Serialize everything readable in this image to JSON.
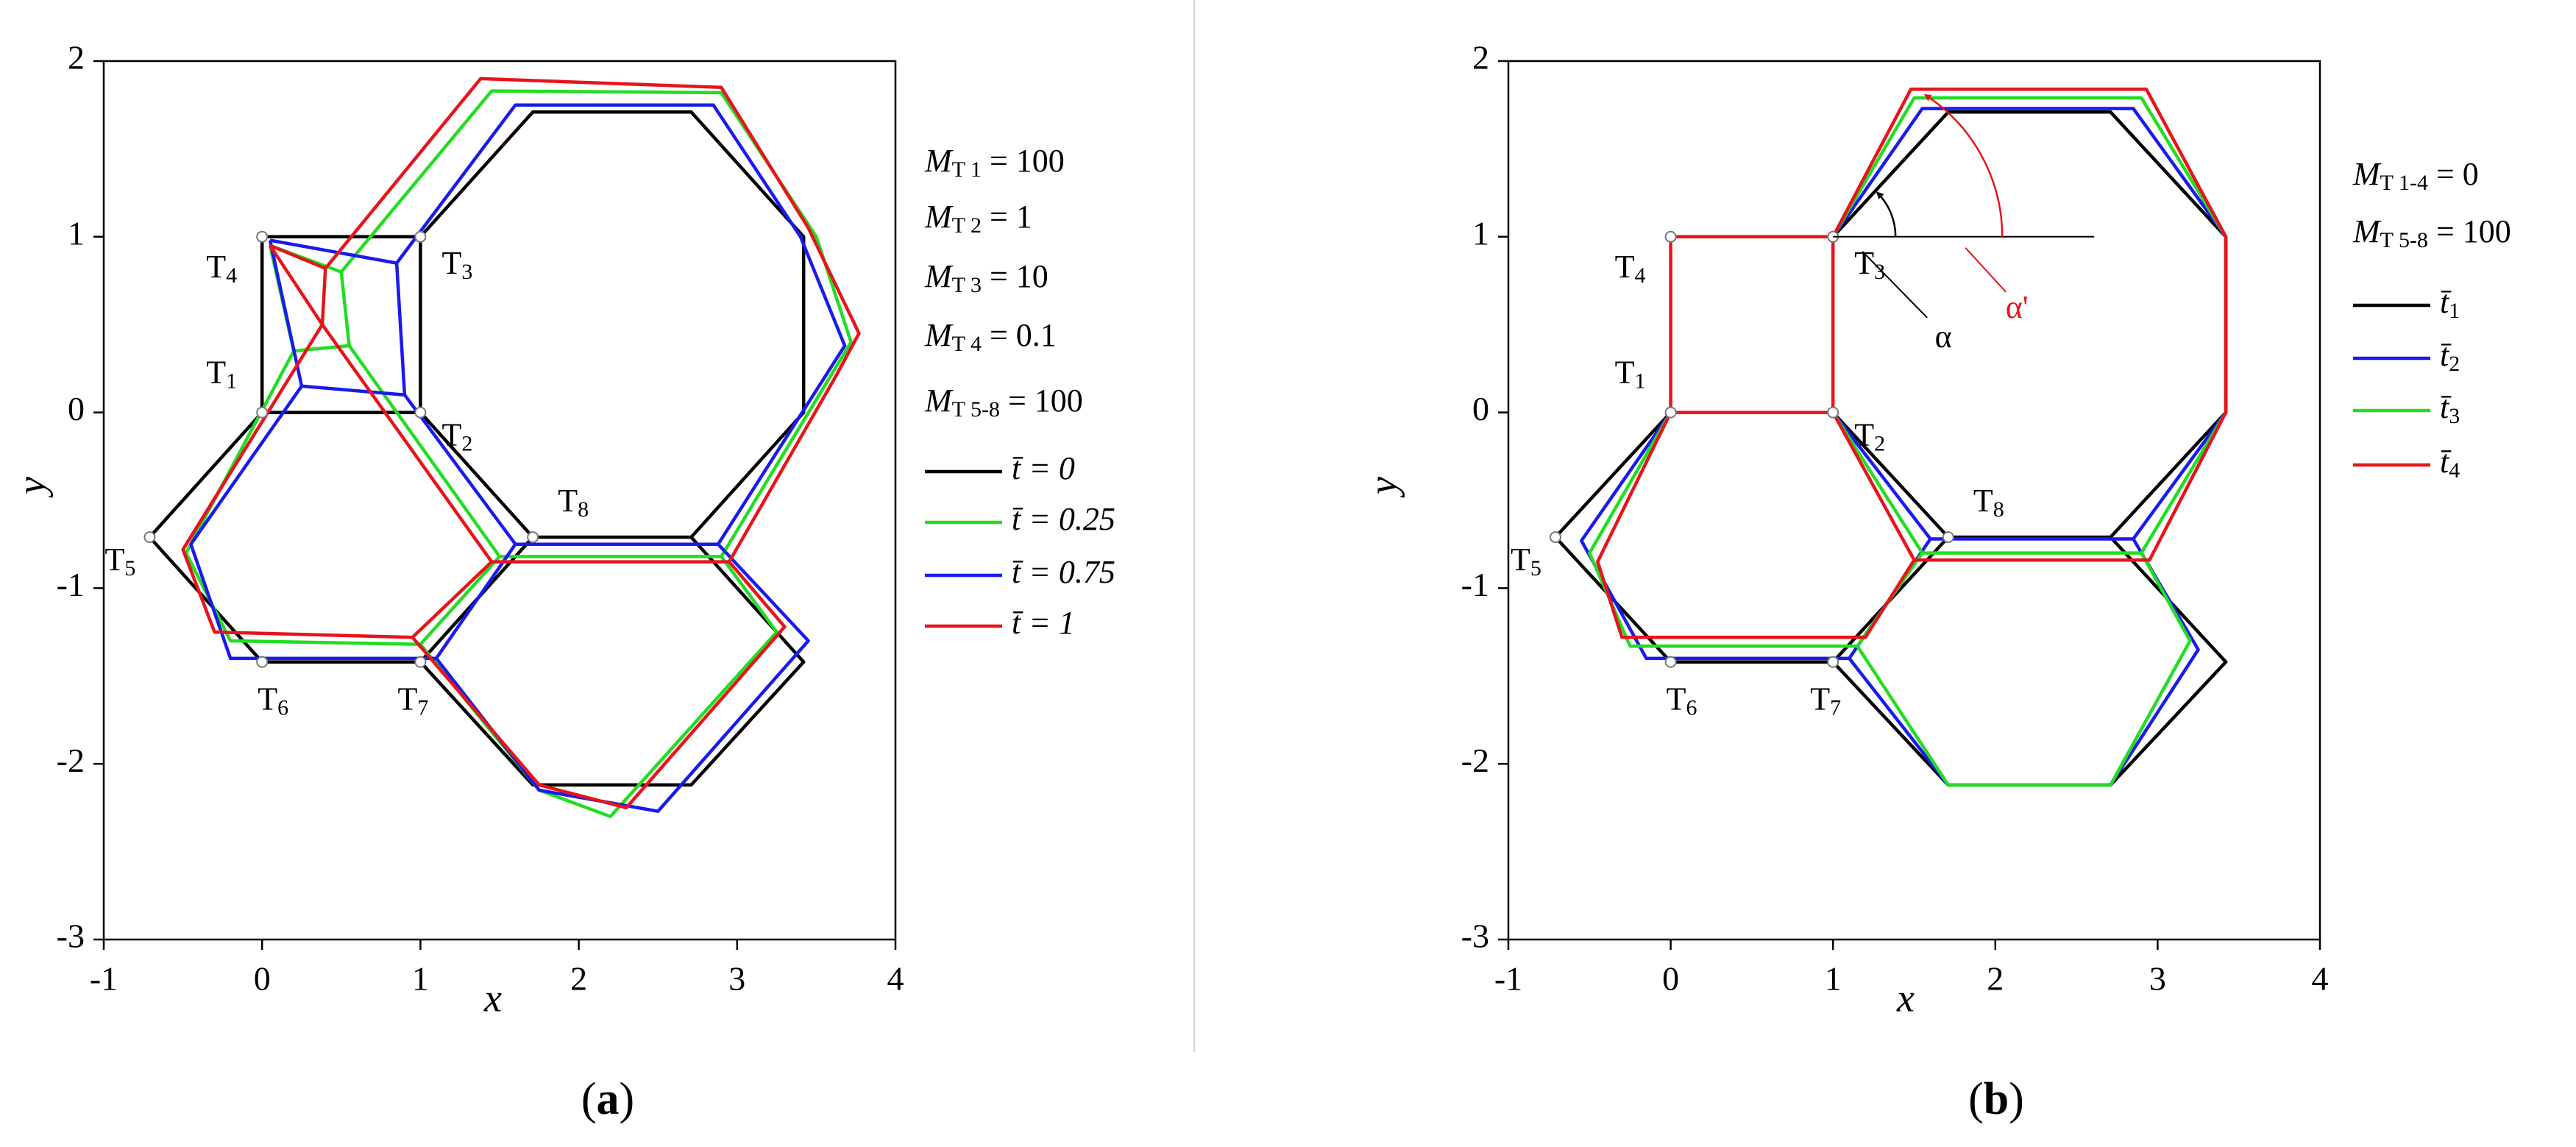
{
  "chart_data": [
    {
      "type": "line",
      "caption": "(a)",
      "xlabel": "x",
      "ylabel": "y",
      "xlim": [
        -1,
        4
      ],
      "ylim": [
        -3,
        2
      ],
      "xticks": [
        -1,
        0,
        1,
        2,
        3,
        4
      ],
      "yticks": [
        -3,
        -2,
        -1,
        0,
        1,
        2
      ],
      "grid": false,
      "params": [
        {
          "symbol": "M",
          "subscript": "T 1",
          "text": " = 100"
        },
        {
          "symbol": "M",
          "subscript": "T 2",
          "text": " = 1"
        },
        {
          "symbol": "M",
          "subscript": "T 3",
          "text": " = 10"
        },
        {
          "symbol": "M",
          "subscript": "T 4",
          "text": " = 0.1"
        },
        {
          "symbol": "M",
          "subscript": "T 5-8",
          "text": " = 100"
        }
      ],
      "nodes": [
        {
          "label": "T",
          "subscript": "1",
          "x": 0,
          "y": 0
        },
        {
          "label": "T",
          "subscript": "2",
          "x": 1,
          "y": 0
        },
        {
          "label": "T",
          "subscript": "3",
          "x": 1,
          "y": 1
        },
        {
          "label": "T",
          "subscript": "4",
          "x": 0,
          "y": 1
        },
        {
          "label": "T",
          "subscript": "5",
          "x": -0.71,
          "y": -0.71
        },
        {
          "label": "T",
          "subscript": "6",
          "x": 0,
          "y": -1.42
        },
        {
          "label": "T",
          "subscript": "7",
          "x": 1,
          "y": -1.42
        },
        {
          "label": "T",
          "subscript": "8",
          "x": 1.71,
          "y": -0.71
        }
      ],
      "series": [
        {
          "name": "t̄ = 0",
          "color": "#000000",
          "x": [
            0,
            1,
            1,
            0,
            0,
            null,
            1,
            1.71,
            2.71,
            3.42,
            3.42,
            2.71,
            1.71,
            1,
            null,
            0,
            -0.71,
            0,
            1,
            1.71,
            null,
            2.71,
            3.42,
            2.71,
            1.71,
            1
          ],
          "values": [
            0,
            0,
            1,
            1,
            0,
            null,
            1,
            1.71,
            1.71,
            1,
            0,
            -0.71,
            -0.71,
            0,
            null,
            0,
            -0.71,
            -1.42,
            -1.42,
            -0.71,
            null,
            -0.71,
            -1.42,
            -2.12,
            -2.12,
            -1.42
          ]
        },
        {
          "name": "t̄ = 0.25",
          "color": "#22dd22",
          "x": [
            0.05,
            0.5,
            0.55,
            0.2,
            0.05,
            null,
            0.5,
            1.45,
            2.9,
            3.5,
            3.72,
            2.9,
            1.5,
            0.55,
            null,
            0.2,
            -0.48,
            -0.2,
            1,
            1.5,
            null,
            1,
            1.75,
            2.2,
            3.25,
            2.9
          ],
          "values": [
            0.95,
            0.8,
            0.38,
            0.35,
            0.95,
            null,
            0.8,
            1.83,
            1.82,
            1,
            0.4,
            -0.82,
            -0.82,
            0.38,
            null,
            0.35,
            -0.8,
            -1.3,
            -1.32,
            -0.82,
            null,
            -1.32,
            -2.15,
            -2.3,
            -1.25,
            -0.82
          ]
        },
        {
          "name": "t̄ = 0.75",
          "color": "#1a1aee",
          "x": [
            0.05,
            0.85,
            0.9,
            0.25,
            0.05,
            null,
            0.85,
            1.6,
            2.85,
            3.4,
            3.68,
            2.88,
            1.6,
            0.9,
            null,
            0.25,
            -0.45,
            -0.2,
            1.1,
            1.6,
            null,
            1.1,
            1.75,
            2.5,
            3.45,
            2.88
          ],
          "values": [
            0.98,
            0.85,
            0.1,
            0.15,
            0.98,
            null,
            0.85,
            1.75,
            1.75,
            1,
            0.38,
            -0.75,
            -0.75,
            0.1,
            null,
            0.15,
            -0.75,
            -1.4,
            -1.4,
            -0.75,
            null,
            -1.4,
            -2.15,
            -2.27,
            -1.3,
            -0.75
          ]
        },
        {
          "name": "t̄ = 1",
          "color": "#e8141b",
          "x": [
            0.05,
            0.4,
            0.38,
            0.05,
            null,
            0.4,
            1.38,
            2.9,
            3.45,
            3.77,
            3.62,
            2.95,
            1.45,
            0.38,
            null,
            0.38,
            -0.5,
            -0.3,
            0.95,
            1.45,
            null,
            0.95,
            1.75,
            2.3,
            3.3,
            2.95
          ],
          "values": [
            0.95,
            0.82,
            0.5,
            0.95,
            null,
            0.82,
            1.9,
            1.85,
            1.05,
            0.45,
            0.2,
            -0.85,
            -0.85,
            0.5,
            null,
            0.5,
            -0.78,
            -1.25,
            -1.28,
            -0.85,
            null,
            -1.28,
            -2.12,
            -2.25,
            -1.22,
            -0.85
          ]
        }
      ]
    },
    {
      "type": "line",
      "caption": "(b)",
      "xlabel": "x",
      "ylabel": "y",
      "xlim": [
        -1,
        4
      ],
      "ylim": [
        -3,
        2
      ],
      "xticks": [
        -1,
        0,
        1,
        2,
        3,
        4
      ],
      "yticks": [
        -3,
        -2,
        -1,
        0,
        1,
        2
      ],
      "grid": false,
      "params": [
        {
          "symbol": "M",
          "subscript": "T 1-4",
          "text": " = 0"
        },
        {
          "symbol": "M",
          "subscript": "T 5-8",
          "text": " = 100"
        }
      ],
      "annotations": [
        "α",
        "α'"
      ],
      "nodes": [
        {
          "label": "T",
          "subscript": "1",
          "x": 0,
          "y": 0
        },
        {
          "label": "T",
          "subscript": "2",
          "x": 1,
          "y": 0
        },
        {
          "label": "T",
          "subscript": "3",
          "x": 1,
          "y": 1
        },
        {
          "label": "T",
          "subscript": "4",
          "x": 0,
          "y": 1
        },
        {
          "label": "T",
          "subscript": "5",
          "x": -0.71,
          "y": -0.71
        },
        {
          "label": "T",
          "subscript": "6",
          "x": 0,
          "y": -1.42
        },
        {
          "label": "T",
          "subscript": "7",
          "x": 1,
          "y": -1.42
        },
        {
          "label": "T",
          "subscript": "8",
          "x": 1.71,
          "y": -0.71
        }
      ],
      "series": [
        {
          "name": "t̄",
          "subscript": "1",
          "color": "#000000",
          "x": [
            1,
            1.71,
            2.71,
            3.42,
            3.42,
            2.71,
            1.71,
            1,
            null,
            0,
            -0.71,
            0,
            1,
            1.71,
            null,
            2.71,
            3.42,
            2.71,
            1.71,
            1
          ],
          "values": [
            1,
            1.71,
            1.71,
            1,
            0,
            -0.71,
            -0.71,
            0,
            null,
            0,
            -0.71,
            -1.42,
            -1.42,
            -0.71,
            null,
            -0.71,
            -1.42,
            -2.12,
            -2.12,
            -1.42
          ]
        },
        {
          "name": "t̄",
          "subscript": "2",
          "color": "#1a1aee",
          "x": [
            1,
            1.55,
            2.85,
            3.42,
            3.42,
            2.85,
            1.6,
            1,
            null,
            0,
            -0.55,
            -0.15,
            1.1,
            1.6,
            null,
            2.85,
            3.25,
            2.71,
            1.71,
            1.1
          ],
          "values": [
            1,
            1.73,
            1.73,
            1,
            0,
            -0.72,
            -0.72,
            0,
            null,
            0,
            -0.73,
            -1.4,
            -1.4,
            -0.72,
            null,
            -0.72,
            -1.35,
            -2.12,
            -2.12,
            -1.4
          ]
        },
        {
          "name": "t̄",
          "subscript": "3",
          "color": "#22dd22",
          "x": [
            1,
            1.5,
            2.9,
            3.42,
            3.42,
            2.9,
            1.55,
            1,
            null,
            0,
            -0.5,
            -0.25,
            1.15,
            1.55,
            null,
            2.9,
            3.2,
            2.71,
            1.71,
            1.15
          ],
          "values": [
            1,
            1.79,
            1.79,
            1,
            0,
            -0.8,
            -0.8,
            0,
            null,
            0,
            -0.8,
            -1.33,
            -1.33,
            -0.8,
            null,
            -0.8,
            -1.3,
            -2.12,
            -2.12,
            -1.33
          ]
        },
        {
          "name": "t̄",
          "subscript": "4",
          "color": "#e8141b",
          "x": [
            0,
            1,
            1,
            0,
            0,
            null,
            1,
            1.48,
            2.93,
            3.42,
            3.42,
            2.95,
            1.5,
            1,
            null,
            0,
            -0.45,
            -0.3,
            1.2,
            1.5
          ],
          "values": [
            0,
            0,
            1,
            1,
            0,
            null,
            1,
            1.84,
            1.84,
            1,
            0,
            -0.84,
            -0.84,
            0,
            null,
            0,
            -0.85,
            -1.28,
            -1.28,
            -0.84
          ]
        }
      ]
    }
  ]
}
